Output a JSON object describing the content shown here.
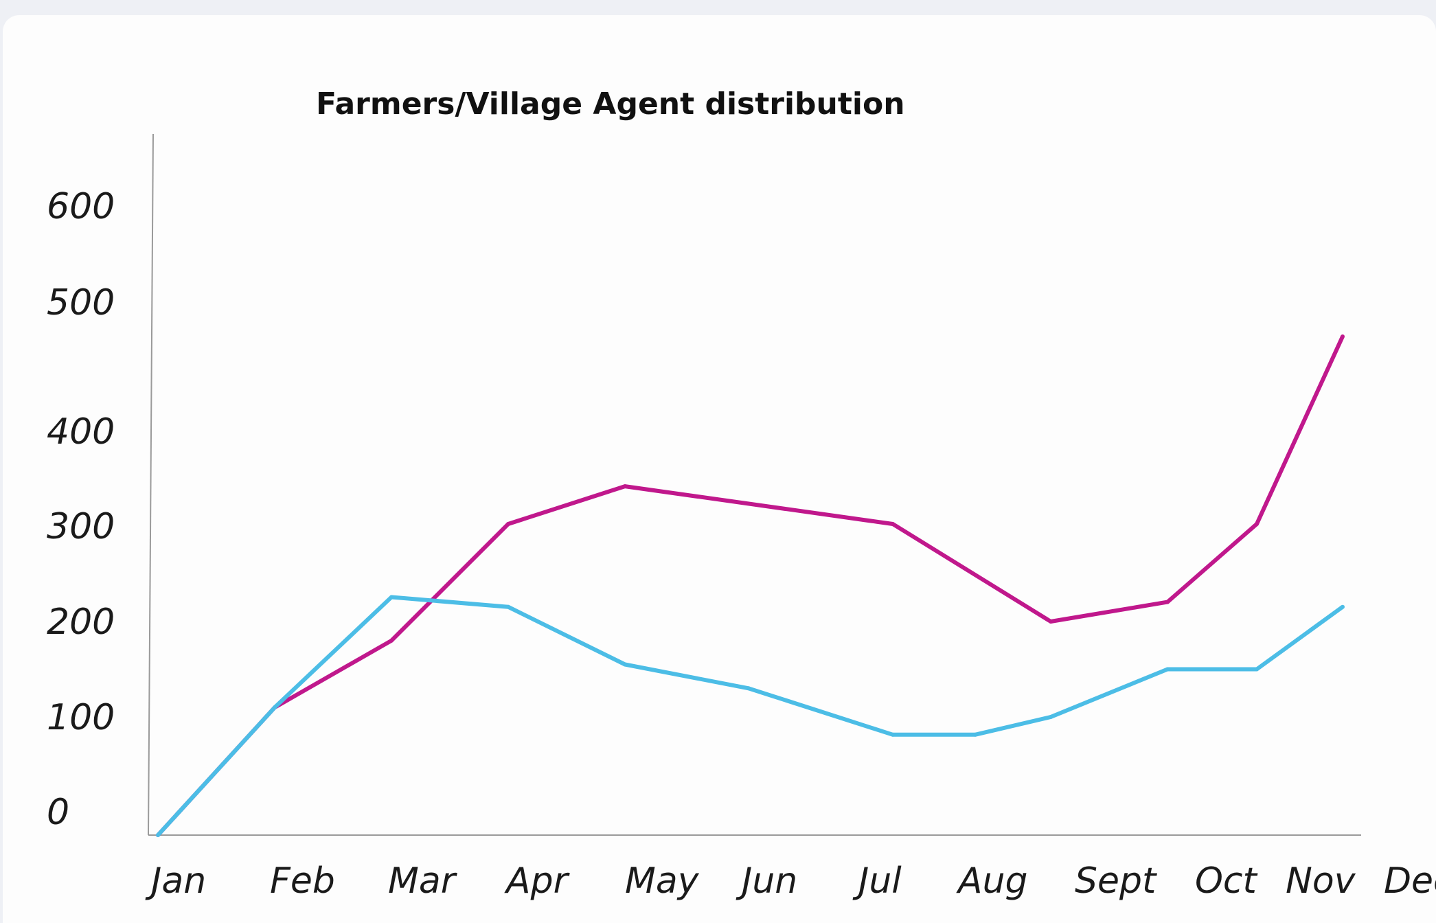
{
  "chart_data": {
    "type": "line",
    "title": "Farmers/Village Agent distribution",
    "xlabel": "",
    "ylabel": "",
    "categories": [
      "Jan",
      "Feb",
      "Mar",
      "Apr",
      "May",
      "Jun",
      "Jul",
      "Aug",
      "Sept",
      "Oct",
      "Nov",
      "Dec"
    ],
    "y_ticks": [
      "0",
      "100",
      "200",
      "300",
      "400",
      "500",
      "600"
    ],
    "grid": false,
    "legend": "none",
    "series": [
      {
        "color": "#c0188c",
        "points": [
          {
            "x": "Jan",
            "y": 0
          },
          {
            "x": "Feb",
            "y": 110
          },
          {
            "x": "Mar",
            "y": 180
          },
          {
            "x": "Apr",
            "y": 300
          },
          {
            "x": "May",
            "y": 330
          },
          {
            "x": "Jul",
            "y": 300
          },
          {
            "x": "Sept",
            "y": 200
          },
          {
            "x": "Oct",
            "y": 220
          },
          {
            "x": "Nov",
            "y": 300
          },
          {
            "x": "Dec",
            "y": 460
          }
        ]
      },
      {
        "color": "#4cbde6",
        "points": [
          {
            "x": "Jan",
            "y": 0
          },
          {
            "x": "Feb",
            "y": 110
          },
          {
            "x": "Mar",
            "y": 225
          },
          {
            "x": "Apr",
            "y": 215
          },
          {
            "x": "May",
            "y": 155
          },
          {
            "x": "Jun",
            "y": 130
          },
          {
            "x": "Jul",
            "y": 85
          },
          {
            "x": "Aug",
            "y": 85
          },
          {
            "x": "Sept",
            "y": 100
          },
          {
            "x": "Oct",
            "y": 150
          },
          {
            "x": "Nov",
            "y": 150
          },
          {
            "x": "Dec",
            "y": 215
          }
        ]
      }
    ]
  }
}
